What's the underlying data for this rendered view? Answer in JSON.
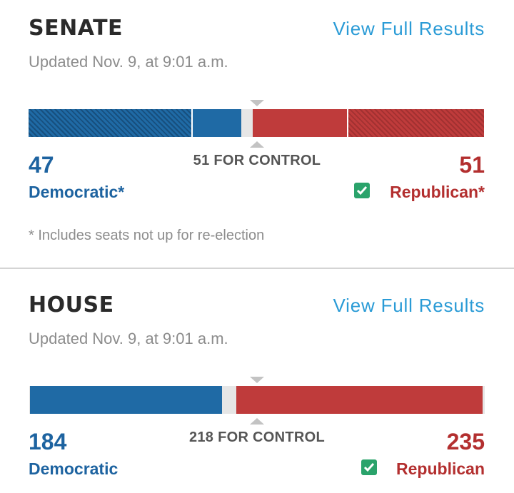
{
  "senate": {
    "title": "SENATE",
    "link": "View Full Results",
    "updated": "Updated Nov. 9, at 9:01 a.m.",
    "control": "51 FOR CONTROL",
    "dem_seats": "47",
    "rep_seats": "51",
    "dem_label": "Democratic*",
    "rep_label": "Republican*",
    "winner": "Republican",
    "footnote": "* Includes seats not up for re-election"
  },
  "house": {
    "title": "HOUSE",
    "link": "View Full Results",
    "updated": "Updated Nov. 9, at 9:01 a.m.",
    "control": "218 FOR CONTROL",
    "dem_seats": "184",
    "rep_seats": "235",
    "dem_label": "Democratic",
    "rep_label": "Republican",
    "winner": "Republican"
  },
  "colors": {
    "democratic": "#1f6aa5",
    "republican": "#bf3b3b",
    "undecided": "#e6e6e6",
    "link": "#2a9bd6",
    "check": "#2aa36b"
  },
  "icons": [
    "checkmark-icon",
    "control-marker-icon"
  ]
}
